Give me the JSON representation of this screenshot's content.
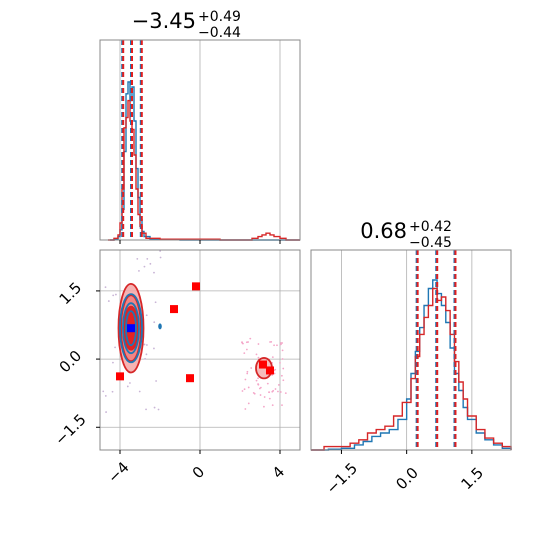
{
  "chart_data": {
    "type": "corner",
    "colors": {
      "blue": "#1f77b4",
      "red": "#d62728",
      "red_fill": "#f4a6a6",
      "red_dark": "#e21f1f",
      "marker_red": "#ff0000",
      "marker_blue": "#0000ff",
      "grid": "#b0b0b0"
    },
    "panels": [
      {
        "id": "hist-param-1",
        "type": "histogram",
        "title": {
          "main": "−3.45",
          "upper": "+0.49",
          "lower": "−0.44"
        },
        "xlim": [
          -5,
          5
        ],
        "x_ticks": [
          -4,
          0,
          4
        ],
        "x_tick_labels": [
          "−4",
          "0",
          "4"
        ],
        "quantile_lines": [
          -3.89,
          -3.45,
          -2.96
        ],
        "series": [
          {
            "name": "",
            "color": "blue",
            "points": [
              [
                -4.5,
                0
              ],
              [
                -4.3,
                0.005
              ],
              [
                -4.1,
                0.02
              ],
              [
                -4.0,
                0.06
              ],
              [
                -3.9,
                0.18
              ],
              [
                -3.8,
                0.52
              ],
              [
                -3.7,
                0.86
              ],
              [
                -3.6,
                0.93
              ],
              [
                -3.5,
                0.82
              ],
              [
                -3.4,
                0.9
              ],
              [
                -3.3,
                0.7
              ],
              [
                -3.2,
                0.42
              ],
              [
                -3.1,
                0.25
              ],
              [
                -3.0,
                0.12
              ],
              [
                -2.9,
                0.05
              ],
              [
                -2.8,
                0.02
              ],
              [
                -2.5,
                0.005
              ],
              [
                -2.0,
                0.002
              ],
              [
                -1.0,
                0
              ],
              [
                5,
                0
              ]
            ]
          },
          {
            "name": "",
            "color": "red",
            "points": [
              [
                -4.6,
                0
              ],
              [
                -4.3,
                0.01
              ],
              [
                -4.1,
                0.03
              ],
              [
                -4.0,
                0.1
              ],
              [
                -3.9,
                0.3
              ],
              [
                -3.8,
                0.66
              ],
              [
                -3.7,
                0.72
              ],
              [
                -3.6,
                0.82
              ],
              [
                -3.5,
                0.7
              ],
              [
                -3.4,
                0.65
              ],
              [
                -3.3,
                0.5
              ],
              [
                -3.2,
                0.3
              ],
              [
                -3.1,
                0.15
              ],
              [
                -3.0,
                0.08
              ],
              [
                -2.9,
                0.04
              ],
              [
                -2.7,
                0.01
              ],
              [
                -2.0,
                0.005
              ],
              [
                1.0,
                0
              ],
              [
                2.6,
                0.01
              ],
              [
                2.9,
                0.02
              ],
              [
                3.1,
                0.03
              ],
              [
                3.3,
                0.04
              ],
              [
                3.5,
                0.03
              ],
              [
                3.7,
                0.02
              ],
              [
                4.0,
                0.01
              ],
              [
                4.3,
                0
              ],
              [
                5,
                0
              ]
            ]
          }
        ]
      },
      {
        "id": "joint-param-1-2",
        "type": "contour",
        "xlim": [
          -5,
          5
        ],
        "ylim": [
          -2.0,
          2.4
        ],
        "x_ticks": [
          -4,
          0,
          4
        ],
        "x_tick_labels": [
          "−4",
          "0",
          "4"
        ],
        "y_ticks": [
          -1.5,
          0.0,
          1.5
        ],
        "y_tick_labels": [
          "−1.5",
          "0.0",
          "1.5"
        ],
        "red_contours": [
          {
            "cx": -3.45,
            "cy": 0.68,
            "rx": 1.25,
            "ry": 1.95
          },
          {
            "cx": -3.45,
            "cy": 0.68,
            "rx": 1.0,
            "ry": 1.45
          },
          {
            "cx": -3.45,
            "cy": 0.68,
            "rx": 0.7,
            "ry": 0.95
          },
          {
            "cx": 3.2,
            "cy": -0.2,
            "rx": 0.8,
            "ry": 0.45
          }
        ],
        "blue_contours": [
          {
            "cx": -3.45,
            "cy": 0.68,
            "rx": 1.1,
            "ry": 1.5
          },
          {
            "cx": -3.45,
            "cy": 0.68,
            "rx": 0.8,
            "ry": 1.1
          },
          {
            "cx": -3.45,
            "cy": 0.68,
            "rx": 0.5,
            "ry": 0.75
          }
        ],
        "red_markers": [
          [
            -4.0,
            -0.38
          ],
          [
            -0.5,
            -0.42
          ],
          [
            -1.3,
            1.1
          ],
          [
            -0.2,
            1.6
          ],
          [
            3.15,
            -0.12
          ],
          [
            3.5,
            -0.25
          ]
        ],
        "blue_markers": [
          [
            -3.45,
            0.68
          ]
        ]
      },
      {
        "id": "hist-param-2",
        "type": "histogram",
        "title": {
          "main": "0.68",
          "upper": "+0.42",
          "lower": "−0.45"
        },
        "xlim": [
          -2.2,
          2.4
        ],
        "x_ticks": [
          -1.5,
          0.0,
          1.5
        ],
        "x_tick_labels": [
          "−1.5",
          "0.0",
          "1.5"
        ],
        "quantile_lines": [
          0.23,
          0.68,
          1.1
        ],
        "series": [
          {
            "name": "",
            "color": "blue",
            "points": [
              [
                -2.2,
                0
              ],
              [
                -1.8,
                0.005
              ],
              [
                -1.5,
                0.01
              ],
              [
                -1.2,
                0.03
              ],
              [
                -1.0,
                0.05
              ],
              [
                -0.8,
                0.08
              ],
              [
                -0.6,
                0.1
              ],
              [
                -0.4,
                0.12
              ],
              [
                -0.2,
                0.18
              ],
              [
                0.0,
                0.3
              ],
              [
                0.1,
                0.45
              ],
              [
                0.2,
                0.58
              ],
              [
                0.3,
                0.72
              ],
              [
                0.4,
                0.85
              ],
              [
                0.5,
                0.95
              ],
              [
                0.6,
                1.0
              ],
              [
                0.7,
                0.92
              ],
              [
                0.8,
                0.85
              ],
              [
                0.9,
                0.75
              ],
              [
                1.0,
                0.6
              ],
              [
                1.1,
                0.45
              ],
              [
                1.2,
                0.35
              ],
              [
                1.3,
                0.25
              ],
              [
                1.4,
                0.18
              ],
              [
                1.6,
                0.1
              ],
              [
                1.8,
                0.06
              ],
              [
                2.0,
                0.03
              ],
              [
                2.2,
                0.01
              ],
              [
                2.4,
                0
              ]
            ]
          },
          {
            "name": "",
            "color": "red",
            "points": [
              [
                -2.2,
                0
              ],
              [
                -1.9,
                0.02
              ],
              [
                -1.6,
                0.02
              ],
              [
                -1.3,
                0.04
              ],
              [
                -1.1,
                0.06
              ],
              [
                -0.9,
                0.1
              ],
              [
                -0.7,
                0.12
              ],
              [
                -0.5,
                0.14
              ],
              [
                -0.3,
                0.2
              ],
              [
                -0.1,
                0.28
              ],
              [
                0.1,
                0.42
              ],
              [
                0.2,
                0.55
              ],
              [
                0.3,
                0.68
              ],
              [
                0.4,
                0.78
              ],
              [
                0.5,
                0.85
              ],
              [
                0.6,
                0.95
              ],
              [
                0.7,
                0.88
              ],
              [
                0.8,
                0.9
              ],
              [
                0.9,
                0.82
              ],
              [
                1.0,
                0.68
              ],
              [
                1.1,
                0.52
              ],
              [
                1.2,
                0.4
              ],
              [
                1.3,
                0.3
              ],
              [
                1.4,
                0.2
              ],
              [
                1.6,
                0.12
              ],
              [
                1.8,
                0.07
              ],
              [
                2.0,
                0.04
              ],
              [
                2.2,
                0.02
              ],
              [
                2.4,
                0
              ]
            ]
          }
        ]
      }
    ]
  }
}
